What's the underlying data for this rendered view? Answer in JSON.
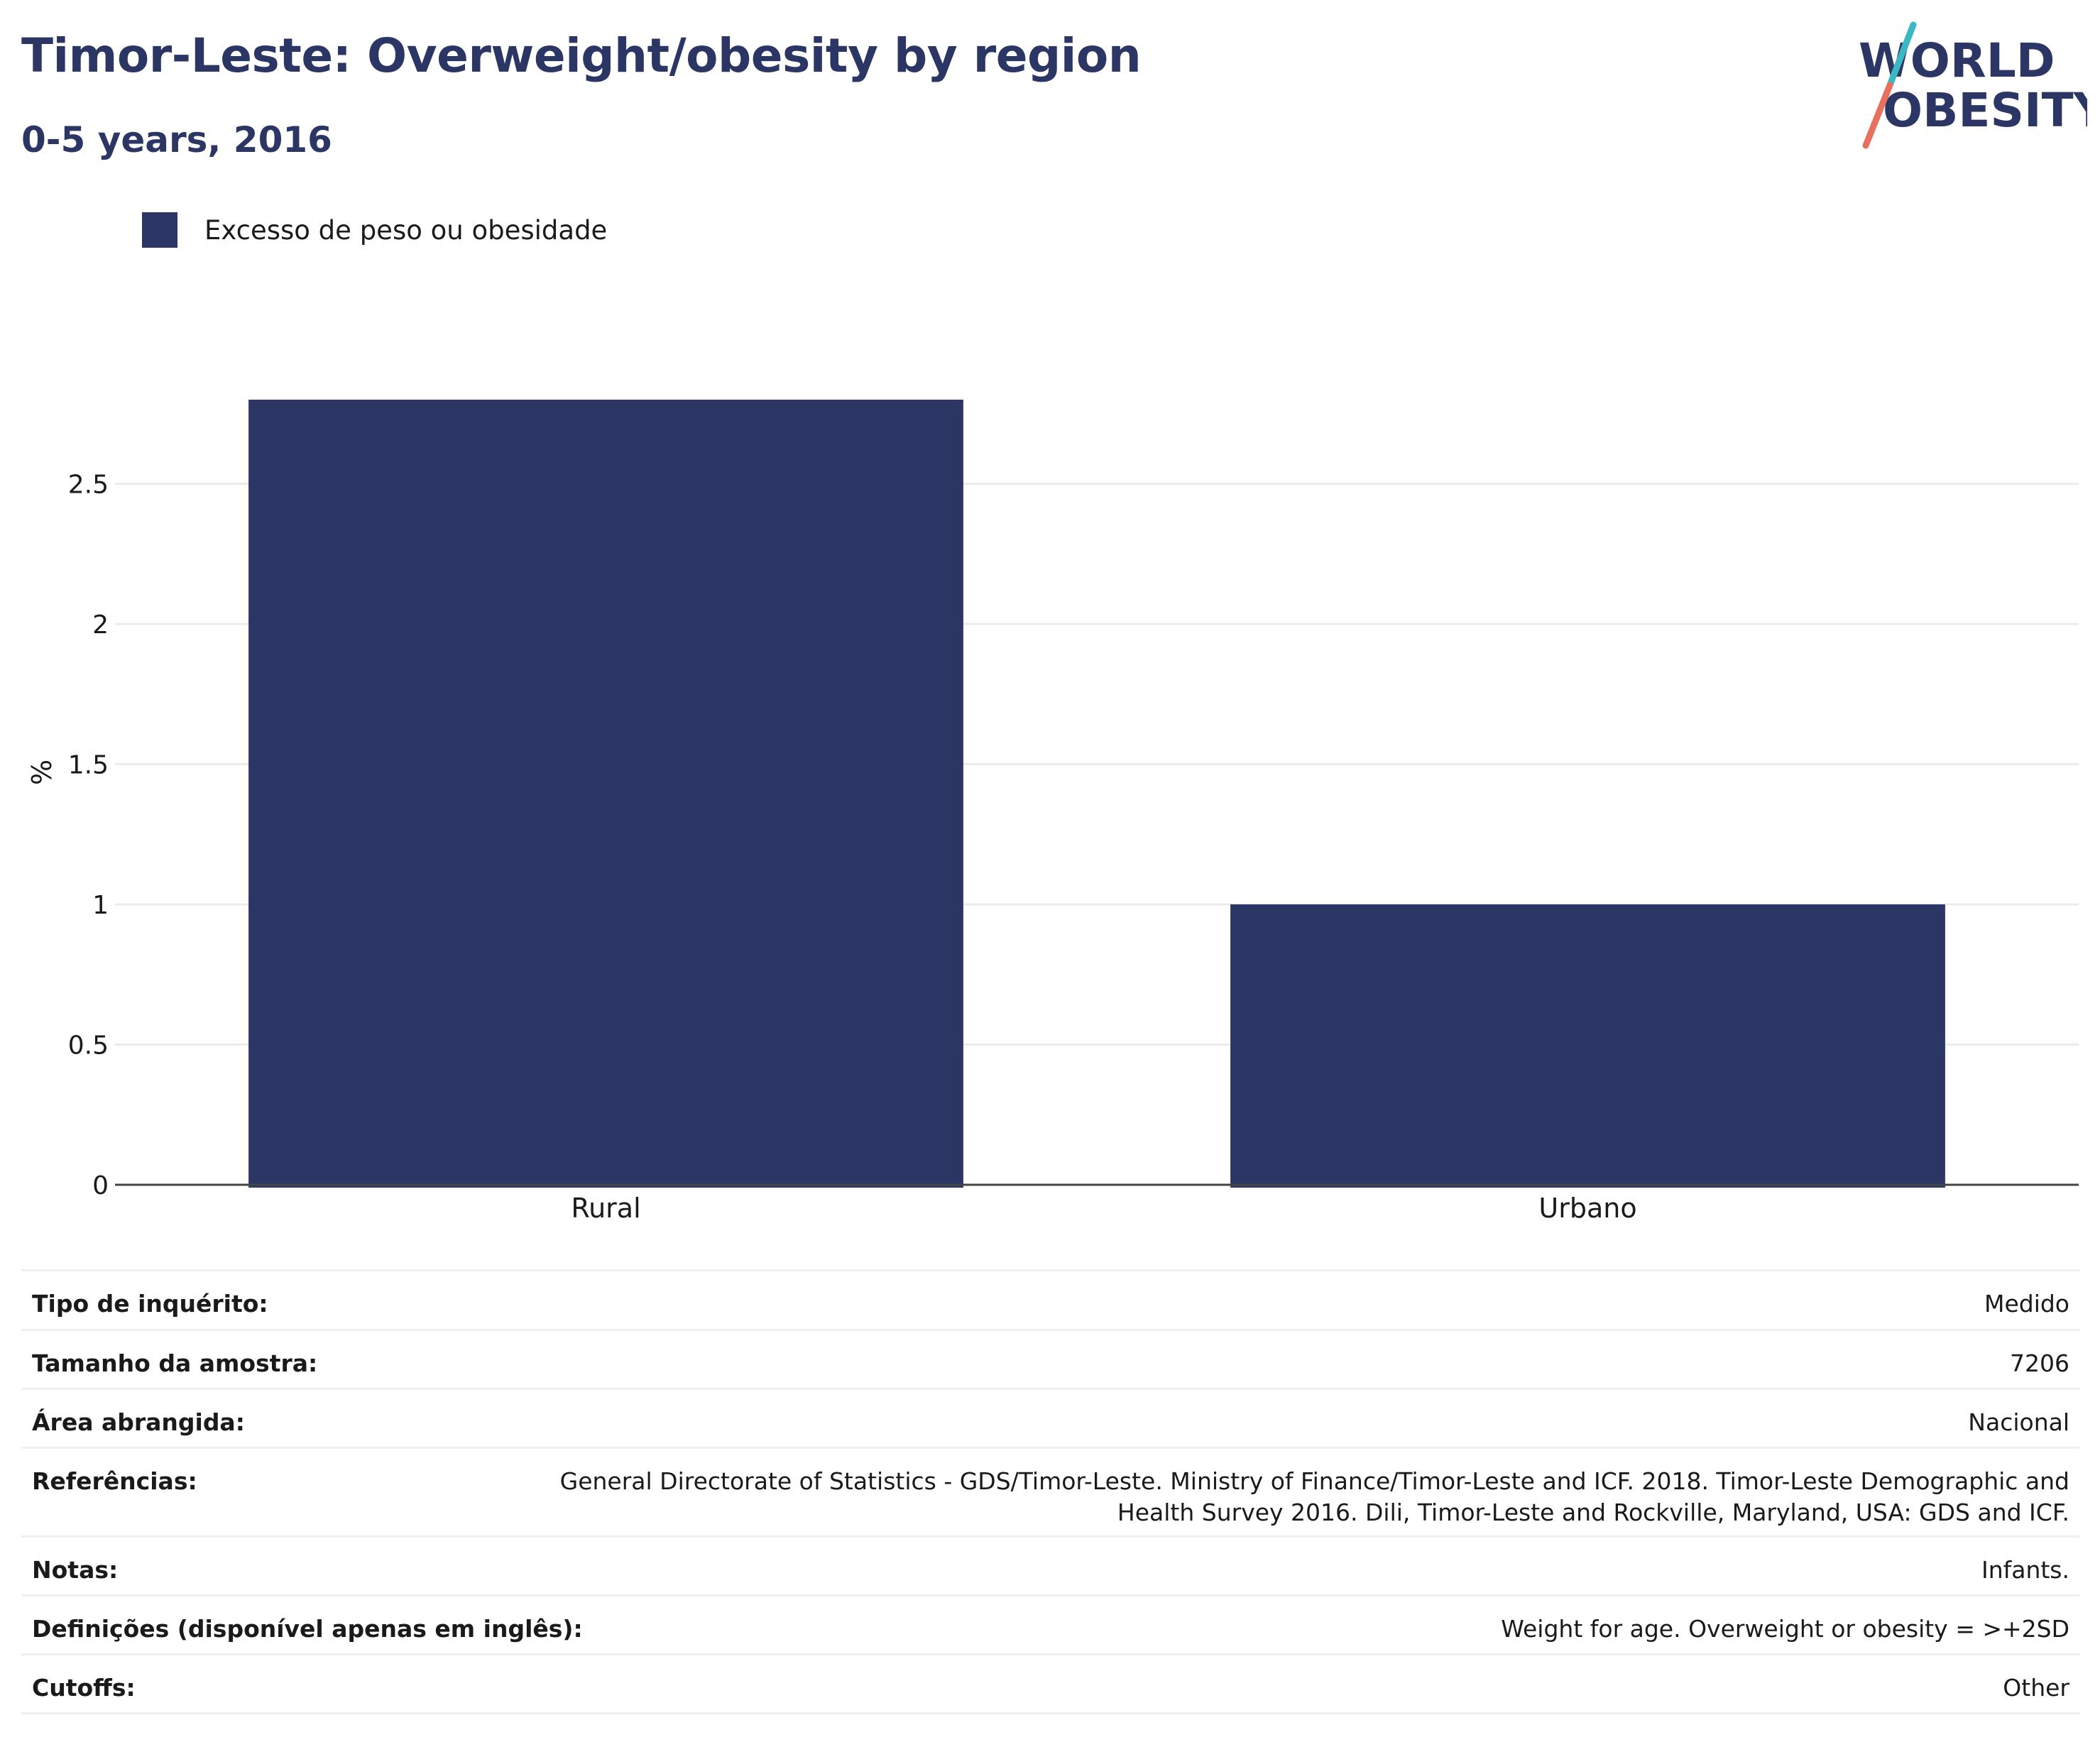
{
  "header": {
    "title": "Timor-Leste: Overweight/obesity by region",
    "subtitle": "0-5 years, 2016"
  },
  "logo": {
    "line1": "WORLD",
    "line2": "OBESITY",
    "colors": {
      "text": "#2b3664",
      "slash_top": "#3bb8c3",
      "slash_bottom": "#e8705f"
    }
  },
  "legend": {
    "items": [
      {
        "label": "Excesso de peso ou obesidade",
        "color": "#2b3664"
      }
    ]
  },
  "chart_data": {
    "type": "bar",
    "categories": [
      "Rural",
      "Urbano"
    ],
    "series": [
      {
        "name": "Excesso de peso ou obesidade",
        "values": [
          2.8,
          1.0
        ]
      }
    ],
    "ylabel": "%",
    "ylim": [
      0,
      2.8
    ],
    "yticks": [
      0,
      0.5,
      1,
      1.5,
      2,
      2.5
    ],
    "ytick_labels": [
      "0",
      "0.5",
      "1",
      "1.5",
      "2",
      "2.5"
    ],
    "grid": true,
    "bar_color": "#2b3664",
    "legend_position": "top-left"
  },
  "info_table": [
    {
      "label": "Tipo de inquérito:",
      "value": "Medido"
    },
    {
      "label": "Tamanho da amostra:",
      "value": "7206"
    },
    {
      "label": "Área abrangida:",
      "value": "Nacional"
    },
    {
      "label": "Referências:",
      "value_lines": [
        "General Directorate of Statistics - GDS/Timor-Leste. Ministry of Finance/Timor-Leste and ICF. 2018. Timor-Leste Demographic and",
        "Health Survey 2016. Dili, Timor-Leste and Rockville, Maryland, USA: GDS and ICF."
      ]
    },
    {
      "label": "Notas:",
      "value": "Infants."
    },
    {
      "label": "Definições (disponível apenas em inglês):",
      "value": "Weight for age. Overweight or obesity = >+2SD"
    },
    {
      "label": "Cutoffs:",
      "value": "Other"
    }
  ]
}
